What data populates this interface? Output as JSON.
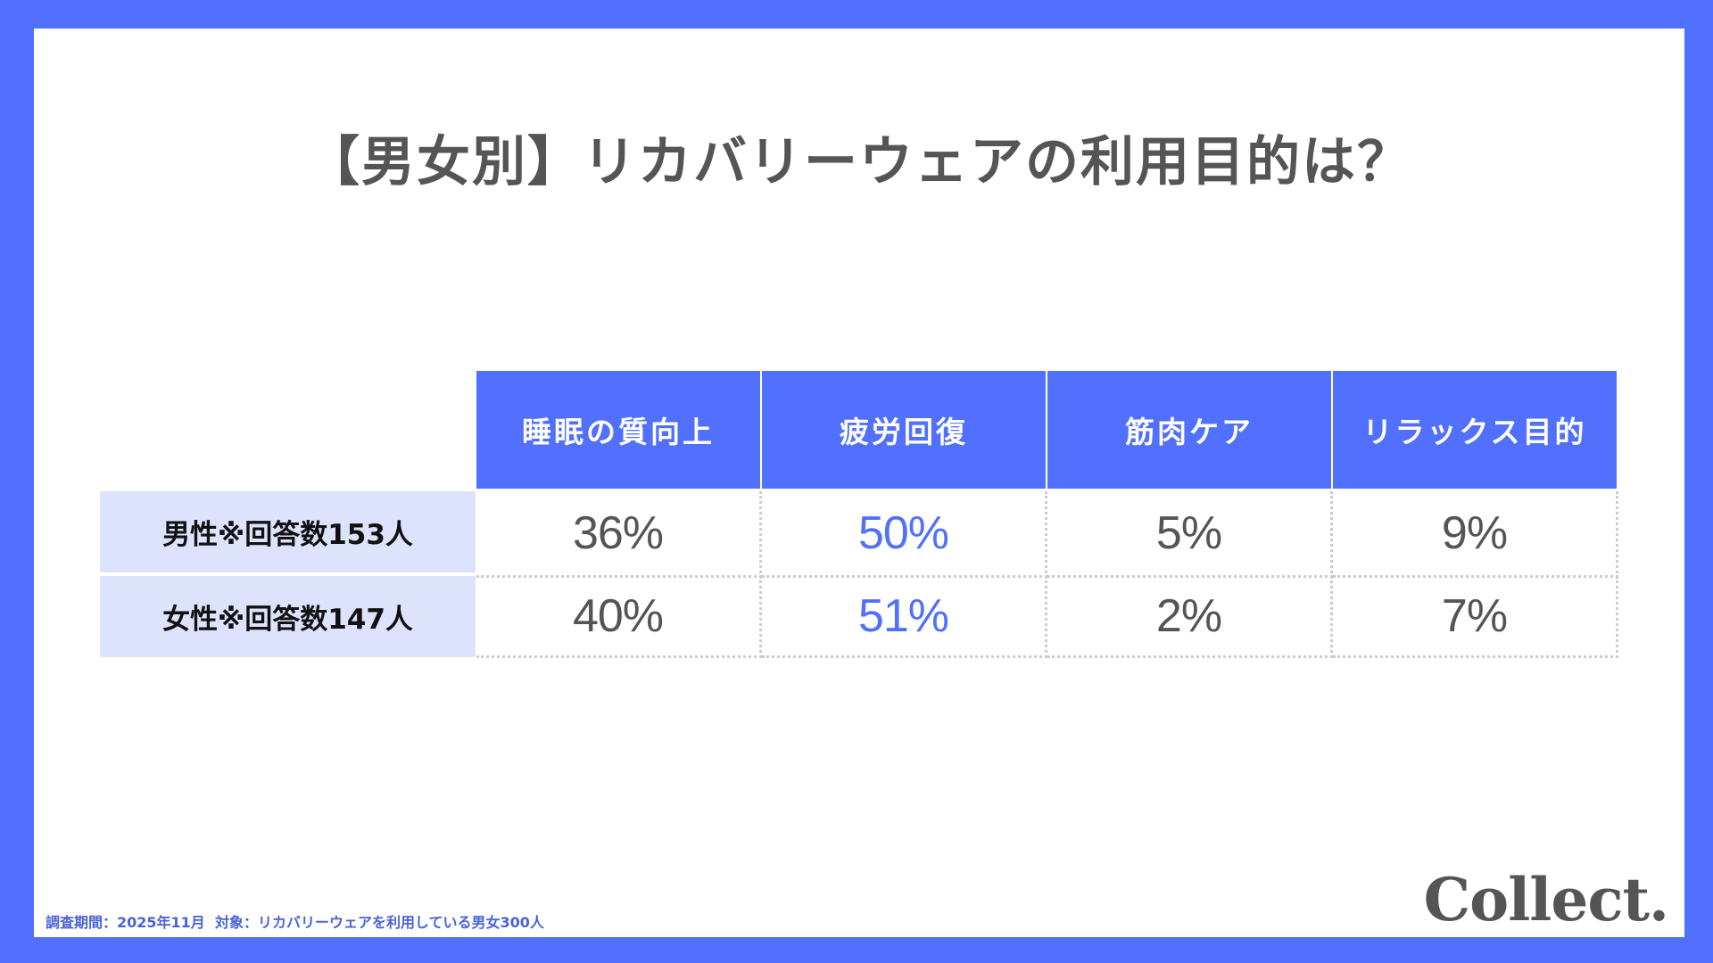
{
  "title": "【男女別】リカバリーウェアの利用目的は？",
  "table": {
    "columns": [
      "睡眠の質向上",
      "疲労回復",
      "筋肉ケア",
      "リラックス目的"
    ],
    "rows": [
      {
        "label": "男性※回答数153人",
        "values": [
          "36%",
          "50%",
          "5%",
          "9%"
        ]
      },
      {
        "label": "女性※回答数147人",
        "values": [
          "40%",
          "51%",
          "2%",
          "7%"
        ]
      }
    ],
    "highlight_column_index": 1
  },
  "footnote": "調査期間：2025年11月  対象：リカバリーウェアを利用している男女300人",
  "logo": "Collect.",
  "colors": {
    "frame": "#5170fd",
    "header_bg": "#5170fd",
    "label_bg": "#dde3fd",
    "accent_text": "#5170fd",
    "body_text": "#555555",
    "footnote_text": "#4a62d8"
  },
  "chart_data": {
    "type": "table",
    "title": "【男女別】リカバリーウェアの利用目的は？",
    "categories": [
      "睡眠の質向上",
      "疲労回復",
      "筋肉ケア",
      "リラックス目的"
    ],
    "series": [
      {
        "name": "男性※回答数153人",
        "values": [
          36,
          50,
          5,
          9
        ]
      },
      {
        "name": "女性※回答数147人",
        "values": [
          40,
          51,
          2,
          7
        ]
      }
    ],
    "unit": "%",
    "annotations": [
      "調査期間：2025年11月  対象：リカバリーウェアを利用している男女300人"
    ]
  }
}
